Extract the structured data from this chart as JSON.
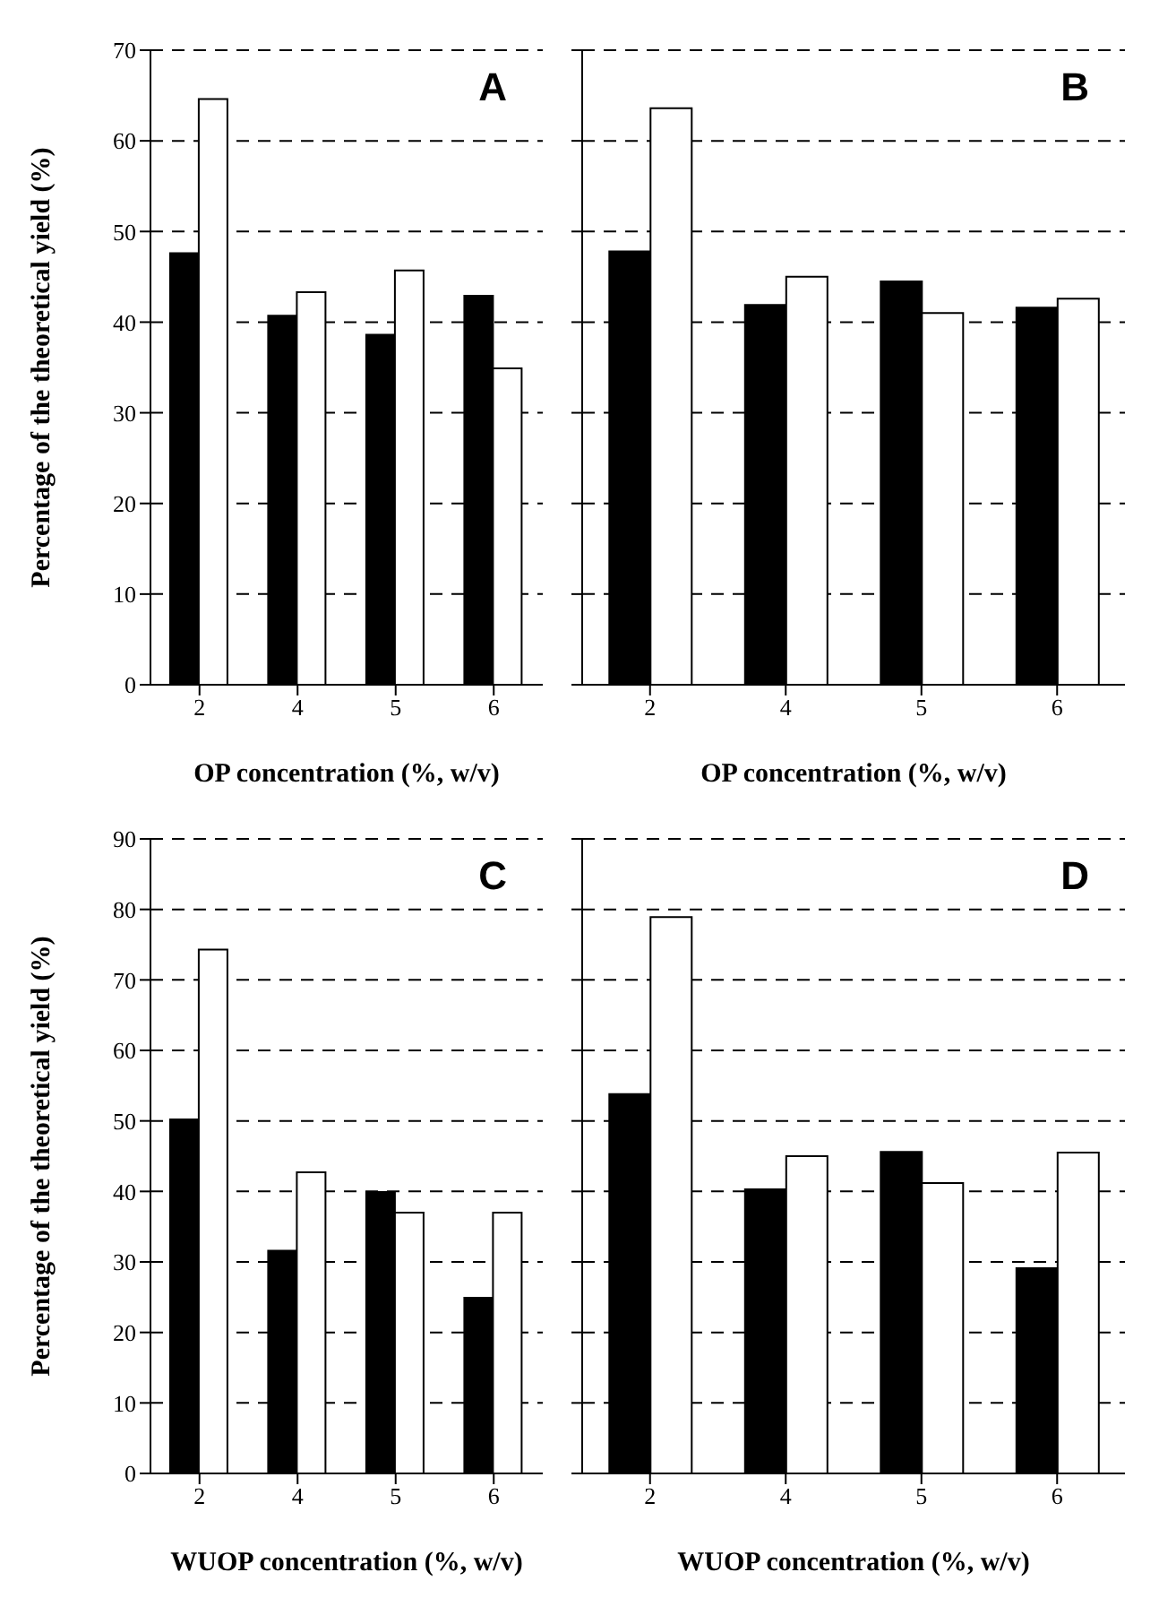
{
  "chart_data": [
    {
      "type": "bar",
      "categories": [
        "2",
        "4",
        "5",
        "6"
      ],
      "series": [
        {
          "color": "#000000",
          "values": [
            47.6,
            40.7,
            38.6,
            42.9
          ]
        },
        {
          "color": "#ffffff",
          "values": [
            64.6,
            43.3,
            45.7,
            34.9
          ]
        }
      ],
      "ylim": [
        0,
        70
      ],
      "yticks": [
        0,
        10,
        20,
        30,
        40,
        50,
        60,
        70
      ],
      "grid": "y",
      "xlabel": "OP concentration (%, w/v)",
      "ylabel": "Percentage of the theoretical yield (%)",
      "annotations": [
        "A"
      ]
    },
    {
      "type": "bar",
      "categories": [
        "2",
        "4",
        "5",
        "6"
      ],
      "series": [
        {
          "color": "#000000",
          "values": [
            47.8,
            41.9,
            44.5,
            41.6
          ]
        },
        {
          "color": "#ffffff",
          "values": [
            63.6,
            45.0,
            41.0,
            42.6
          ]
        }
      ],
      "ylim": [
        0,
        70
      ],
      "yticks": [
        0,
        10,
        20,
        30,
        40,
        50,
        60,
        70
      ],
      "grid": "y",
      "tick_labels": "x",
      "xlabel": "OP concentration (%, w/v)",
      "annotations": [
        "B"
      ]
    },
    {
      "type": "bar",
      "categories": [
        "2",
        "4",
        "5",
        "6"
      ],
      "series": [
        {
          "color": "#000000",
          "values": [
            50.2,
            31.6,
            39.9,
            24.9
          ]
        },
        {
          "color": "#ffffff",
          "values": [
            74.3,
            42.7,
            37.0,
            37.0
          ]
        }
      ],
      "ylim": [
        0,
        90
      ],
      "yticks": [
        0,
        10,
        20,
        30,
        40,
        50,
        60,
        70,
        80,
        90
      ],
      "grid": "y",
      "xlabel": "WUOP concentration (%, w/v)",
      "ylabel": "Percentage of the theoretical yield (%)",
      "annotations": [
        "C"
      ]
    },
    {
      "type": "bar",
      "categories": [
        "2",
        "4",
        "5",
        "6"
      ],
      "series": [
        {
          "color": "#000000",
          "values": [
            53.8,
            40.3,
            45.6,
            29.1
          ]
        },
        {
          "color": "#ffffff",
          "values": [
            78.9,
            45.0,
            41.2,
            45.5
          ]
        }
      ],
      "ylim": [
        0,
        90
      ],
      "yticks": [
        0,
        10,
        20,
        30,
        40,
        50,
        60,
        70,
        80,
        90
      ],
      "grid": "y",
      "tick_labels": "x",
      "xlabel": "WUOP concentration (%, w/v)",
      "annotations": [
        "D"
      ]
    }
  ]
}
